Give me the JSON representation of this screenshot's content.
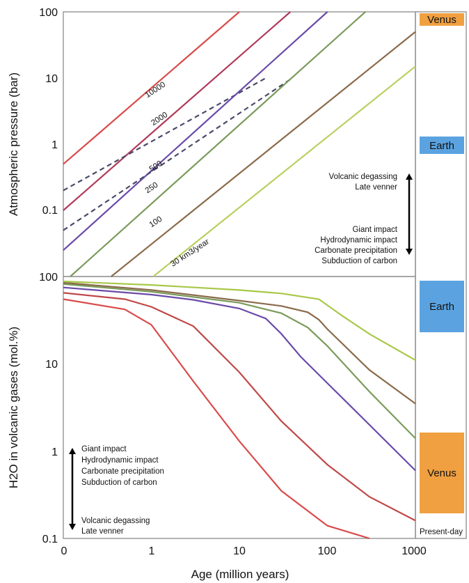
{
  "chart_data": [
    {
      "type": "line",
      "panel": "top",
      "ylabel": "Atmospheric pressure (bar)",
      "yscale": "log",
      "ylim": [
        0.01,
        100
      ],
      "y_ticks": [
        "100",
        "10",
        "1",
        "0.1"
      ],
      "xscale": "log",
      "xlim": [
        0.1,
        1000
      ],
      "series": [
        {
          "name": "10000",
          "color": "#d94b4b",
          "style": "solid",
          "x": [
            0.1,
            10
          ],
          "y": [
            0.5,
            100
          ]
        },
        {
          "name": "2000",
          "color": "#b03a5a",
          "style": "solid",
          "x": [
            0.1,
            38
          ],
          "y": [
            0.1,
            100
          ]
        },
        {
          "name": "",
          "color": "#4a4a6a",
          "style": "dashed",
          "x": [
            0.1,
            20
          ],
          "y": [
            0.2,
            10
          ]
        },
        {
          "name": "500",
          "color": "#6a4aa8",
          "style": "solid",
          "x": [
            0.1,
            100
          ],
          "y": [
            0.025,
            100
          ]
        },
        {
          "name": "",
          "color": "#4a4a6a",
          "style": "dashed",
          "x": [
            0.1,
            40
          ],
          "y": [
            0.05,
            10
          ]
        },
        {
          "name": "250",
          "color": "#7a9a5a",
          "style": "solid",
          "x": [
            0.12,
            270
          ],
          "y": [
            0.01,
            100
          ]
        },
        {
          "name": "100",
          "color": "#8a6a4a",
          "style": "solid",
          "x": [
            0.35,
            1000
          ],
          "y": [
            0.01,
            50
          ]
        },
        {
          "name": "30 km3/year",
          "color": "#b8d060",
          "style": "solid",
          "x": [
            1.05,
            1000
          ],
          "y": [
            0.01,
            15
          ]
        }
      ],
      "annotations": {
        "up_lines": [
          "Volcanic degassing",
          "Late venner"
        ],
        "down_lines": [
          "Giant impact",
          "Hydrodynamic impact",
          "Carbonate precipitation",
          "Subduction of carbon"
        ]
      },
      "references": [
        {
          "label": "Venus",
          "color": "#f0a040"
        },
        {
          "label": "Earth",
          "color": "#5ba3e0"
        }
      ]
    },
    {
      "type": "line",
      "panel": "bottom",
      "ylabel": "H2O in volcanic gases (mol.%)",
      "yscale": "log",
      "ylim": [
        0.1,
        100
      ],
      "y_ticks": [
        "100",
        "10",
        "1",
        "0.1"
      ],
      "xlabel": "Age (million years)",
      "xscale": "log",
      "xlim": [
        0.1,
        1000
      ],
      "x_ticks": [
        "0",
        "1",
        "10",
        "100",
        "1000"
      ],
      "series": [
        {
          "name": "",
          "color": "#d94b4b",
          "x": [
            0.1,
            0.5,
            1.0,
            3.0,
            10.0,
            30.0,
            100.0,
            300.0
          ],
          "y": [
            55,
            42,
            28,
            6.3,
            1.3,
            0.35,
            0.14,
            0.1
          ]
        },
        {
          "name": "",
          "color": "#c04848",
          "x": [
            0.1,
            0.5,
            1.0,
            3.0,
            10.0,
            30.0,
            100.0,
            300.0,
            1000.0
          ],
          "y": [
            65,
            55,
            45,
            27,
            8,
            2.2,
            0.7,
            0.3,
            0.16
          ]
        },
        {
          "name": "",
          "color": "#6a4aa8",
          "x": [
            0.1,
            1.0,
            3.0,
            10.0,
            20.0,
            30.0,
            50.0,
            100.0,
            300.0,
            1000.0
          ],
          "y": [
            75,
            62,
            54,
            43,
            33,
            22,
            12,
            6,
            2,
            0.6
          ]
        },
        {
          "name": "",
          "color": "#7a9a5a",
          "x": [
            0.1,
            1.0,
            10.0,
            30.0,
            60.0,
            100.0,
            300.0,
            1000.0
          ],
          "y": [
            82,
            67,
            50,
            38,
            26,
            16,
            4.8,
            1.4
          ]
        },
        {
          "name": "",
          "color": "#8a6a4a",
          "x": [
            0.1,
            1.0,
            10.0,
            30.0,
            60.0,
            80.0,
            100.0,
            300.0,
            1000.0
          ],
          "y": [
            85,
            70,
            53,
            46,
            39,
            32,
            25,
            8.5,
            3.5
          ]
        },
        {
          "name": "",
          "color": "#a8c848",
          "x": [
            0.1,
            1.0,
            10.0,
            30.0,
            80.0,
            150.0,
            300.0,
            1000.0
          ],
          "y": [
            88,
            80,
            70,
            64,
            55,
            35,
            22,
            11
          ]
        }
      ],
      "annotations": {
        "up_lines": [
          "Giant impact",
          "Hydrodynamic impact",
          "Carbonate precipitation",
          "Subduction of carbon"
        ],
        "down_lines": [
          "Volcanic degassing",
          "Late venner"
        ]
      },
      "references": [
        {
          "label": "Earth",
          "color": "#5ba3e0"
        },
        {
          "label": "Venus",
          "color": "#f0a040"
        }
      ],
      "side_caption": "Present-day"
    }
  ]
}
